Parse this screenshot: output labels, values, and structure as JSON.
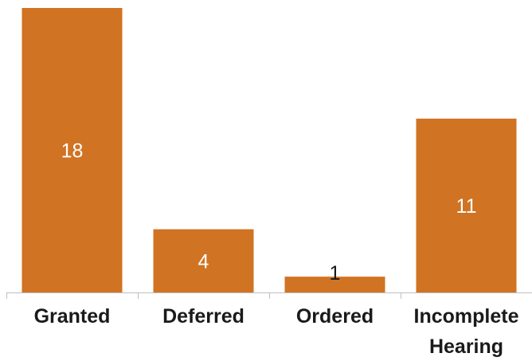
{
  "chart_data": {
    "type": "bar",
    "categories": [
      [
        "Granted"
      ],
      [
        "Deferred"
      ],
      [
        "Ordered"
      ],
      [
        "Incomplete",
        "Hearing"
      ]
    ],
    "values": [
      18,
      4,
      1,
      11
    ],
    "title": "",
    "xlabel": "",
    "ylabel": "",
    "ylim": [
      0,
      18
    ],
    "grid": false,
    "legend": "none",
    "bar_color": "#D07323",
    "label_color_inside": "#ffffff",
    "label_color_outside": "#1a1a1a"
  }
}
